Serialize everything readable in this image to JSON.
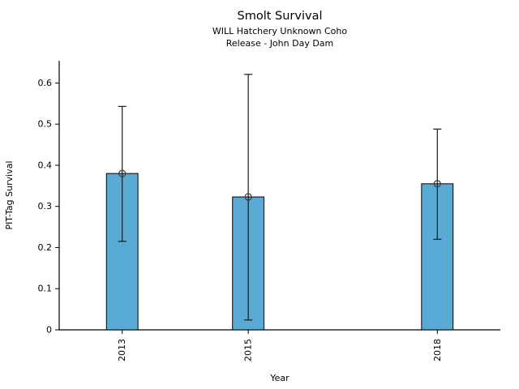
{
  "chart_data": {
    "type": "bar",
    "title": "Smolt Survival",
    "subtitle": [
      "WILL Hatchery Unknown Coho",
      "Release - John Day Dam"
    ],
    "xlabel": "Year",
    "ylabel": "PIT-Tag Survival",
    "categories": [
      "2013",
      "2015",
      "2018"
    ],
    "x": [
      2013,
      2015,
      2018
    ],
    "values": [
      0.38,
      0.323,
      0.355
    ],
    "error_low": [
      0.215,
      0.024,
      0.22
    ],
    "error_high": [
      0.543,
      0.621,
      0.488
    ],
    "xlim": [
      2012,
      2019
    ],
    "ylim": [
      0,
      0.654
    ],
    "y_ticks": [
      0,
      0.1,
      0.2,
      0.3,
      0.4,
      0.5,
      0.6
    ],
    "y_tick_labels": [
      "0",
      "0.1",
      "0.2",
      "0.3",
      "0.4",
      "0.5",
      "0.6"
    ],
    "bar_width_x_units": 0.5,
    "bar_color": "#59AAD5",
    "bar_edge_color": "#000000",
    "error_bar_color": "#1a1a1a",
    "marker": "open-circle",
    "marker_color": "#3a3a3a",
    "axis_color": "#000000",
    "grid": false,
    "legend": false
  }
}
